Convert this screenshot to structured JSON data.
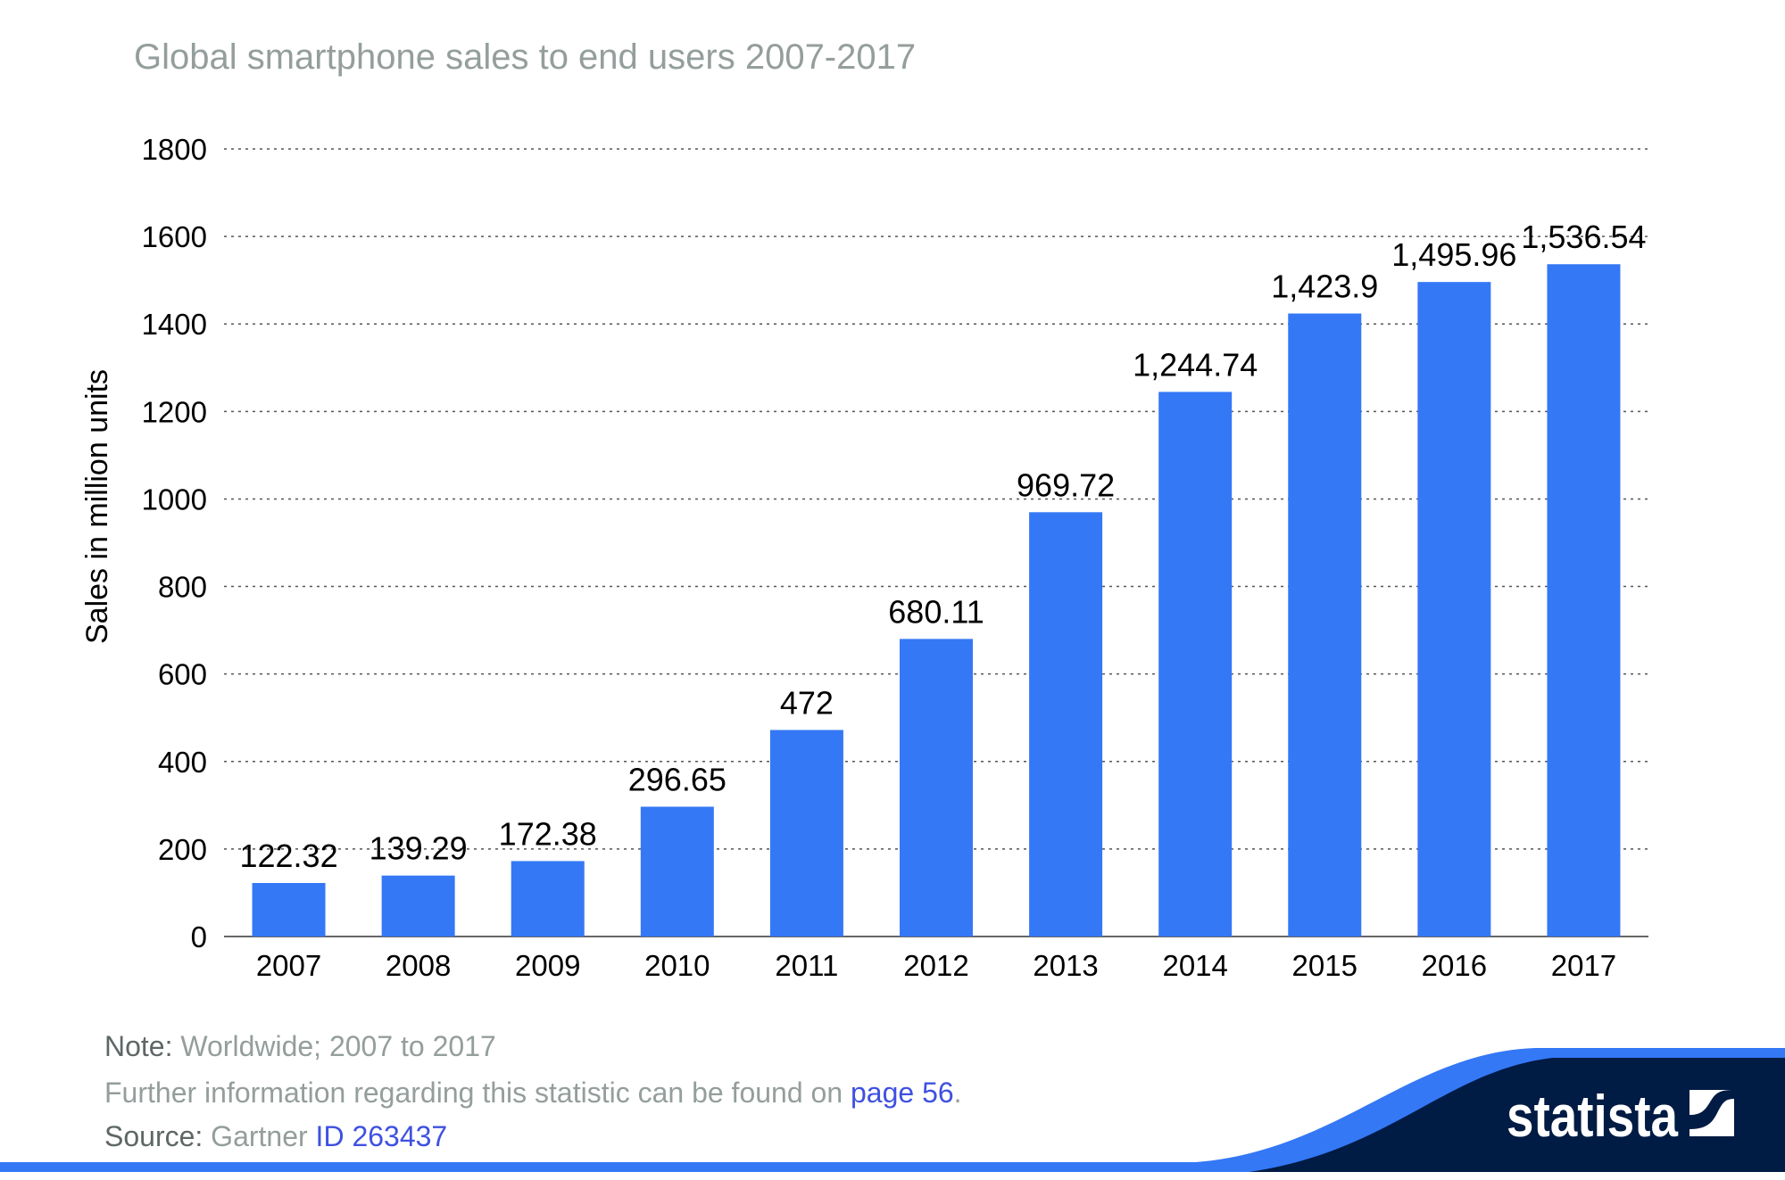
{
  "chart_data": {
    "type": "bar",
    "title": "Global smartphone sales to end users 2007-2017",
    "xlabel": "",
    "ylabel": "Sales in million units",
    "ylim": [
      0,
      1800
    ],
    "yticks": [
      0,
      200,
      400,
      600,
      800,
      1000,
      1200,
      1400,
      1600,
      1800
    ],
    "grid": true,
    "categories": [
      "2007",
      "2008",
      "2009",
      "2010",
      "2011",
      "2012",
      "2013",
      "2014",
      "2015",
      "2016",
      "2017"
    ],
    "values": [
      122.32,
      139.29,
      172.38,
      296.65,
      472,
      680.11,
      969.72,
      1244.74,
      1423.9,
      1495.96,
      1536.54
    ],
    "data_labels": [
      "122.32",
      "139.29",
      "172.38",
      "296.65",
      "472",
      "680.11",
      "969.72",
      "1,244.74",
      "1,423.9",
      "1,495.96",
      "1,536.54"
    ],
    "bar_color": "#3478f6"
  },
  "footer": {
    "note_label": "Note:",
    "note_text": "Worldwide; 2007 to 2017",
    "info_text": "Further information regarding this statistic can be found on",
    "info_link": "page 56",
    "info_end": ".",
    "source_label": "Source:",
    "source_text": "Gartner",
    "source_id": "ID 263437"
  },
  "brand": {
    "name": "statista",
    "navy": "#001b44",
    "blue": "#3478f6"
  }
}
